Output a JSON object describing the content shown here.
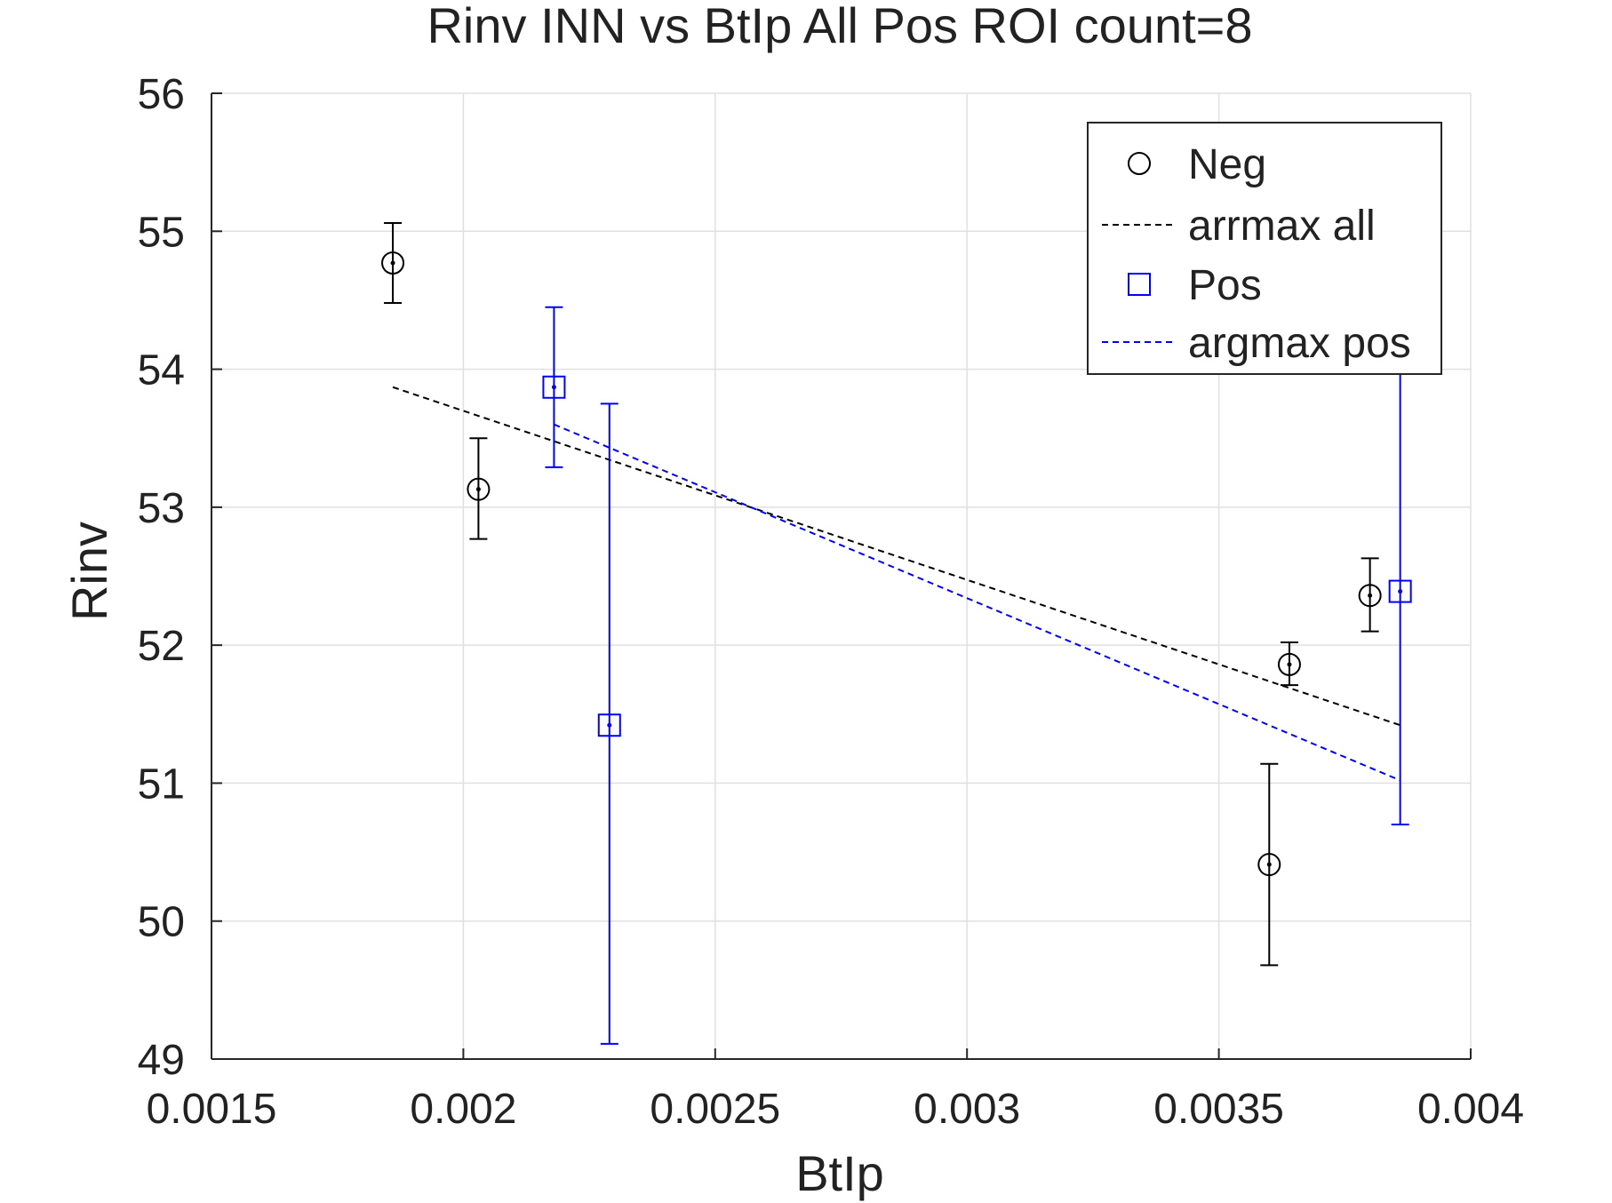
{
  "chart_data": {
    "type": "scatter",
    "title": "Rinv INN vs BtIp All Pos ROI count=8",
    "xlabel": "BtIp",
    "ylabel": "Rinv",
    "xlim": [
      0.0015,
      0.004
    ],
    "ylim": [
      49,
      56
    ],
    "x_ticks": [
      "0.0015",
      "0.002",
      "0.0025",
      "0.003",
      "0.0035",
      "0.004"
    ],
    "x_tick_values": [
      0.0015,
      0.002,
      0.0025,
      0.003,
      0.0035,
      0.004
    ],
    "y_ticks": [
      "49",
      "50",
      "51",
      "52",
      "53",
      "54",
      "55",
      "56"
    ],
    "y_tick_values": [
      49,
      50,
      51,
      52,
      53,
      54,
      55,
      56
    ],
    "grid": true,
    "legend_position": "top-right",
    "series": [
      {
        "name": "Neg",
        "kind": "errorbar",
        "marker": "circle",
        "color": "#000000",
        "x": [
          0.00186,
          0.00203,
          0.0036,
          0.00364,
          0.0038
        ],
        "y": [
          54.77,
          53.13,
          50.41,
          51.86,
          52.36
        ],
        "err_low": [
          54.48,
          52.77,
          49.68,
          51.71,
          52.1
        ],
        "err_high": [
          55.06,
          53.5,
          51.14,
          52.02,
          52.63
        ]
      },
      {
        "name": "arrmax all",
        "kind": "line",
        "dash": "dashed",
        "color": "#000000",
        "x": [
          0.00186,
          0.00386
        ],
        "y": [
          53.87,
          51.42
        ]
      },
      {
        "name": "Pos",
        "kind": "errorbar",
        "marker": "square",
        "color": "#0000ff",
        "x": [
          0.00218,
          0.00229,
          0.00386
        ],
        "y": [
          53.87,
          51.42,
          52.39
        ],
        "err_low": [
          53.29,
          49.11,
          50.7
        ],
        "err_high": [
          54.45,
          53.75,
          54.0
        ]
      },
      {
        "name": "argmax pos",
        "kind": "line",
        "dash": "dashed",
        "color": "#0000ff",
        "x": [
          0.00218,
          0.00386
        ],
        "y": [
          53.6,
          51.02
        ]
      }
    ]
  }
}
